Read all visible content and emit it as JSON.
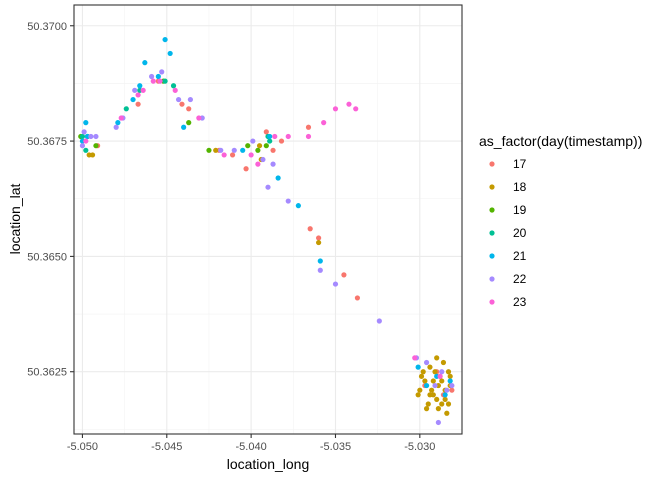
{
  "chart_data": {
    "type": "scatter",
    "title": "",
    "xlabel": "location_long",
    "ylabel": "location_lat",
    "xlim": [
      -5.0505,
      -5.0275
    ],
    "ylim": [
      50.36115,
      50.37045
    ],
    "x_ticks": [
      {
        "value": -5.05,
        "label": "-5.050"
      },
      {
        "value": -5.045,
        "label": "-5.045"
      },
      {
        "value": -5.04,
        "label": "-5.040"
      },
      {
        "value": -5.035,
        "label": "-5.035"
      },
      {
        "value": -5.03,
        "label": "-5.030"
      }
    ],
    "y_ticks": [
      {
        "value": 50.3625,
        "label": "50.3625"
      },
      {
        "value": 50.365,
        "label": "50.3650"
      },
      {
        "value": 50.3675,
        "label": "50.3675"
      },
      {
        "value": 50.37,
        "label": "50.3700"
      }
    ],
    "grid": true,
    "legend": {
      "title": "as_factor(day(timestamp))",
      "position": "right",
      "entries": [
        {
          "label": "17",
          "color": "#F8766D"
        },
        {
          "label": "18",
          "color": "#C49A00"
        },
        {
          "label": "19",
          "color": "#53B400"
        },
        {
          "label": "20",
          "color": "#00C094"
        },
        {
          "label": "21",
          "color": "#00B6EB"
        },
        {
          "label": "22",
          "color": "#A58AFF"
        },
        {
          "label": "23",
          "color": "#FB61D7"
        }
      ]
    },
    "series": [
      {
        "name": "17",
        "color": "#F8766D",
        "points": [
          [
            -5.0491,
            50.3674
          ],
          [
            -5.0467,
            50.3683
          ],
          [
            -5.0455,
            50.3688
          ],
          [
            -5.0441,
            50.3683
          ],
          [
            -5.0437,
            50.3682
          ],
          [
            -5.0419,
            50.3673
          ],
          [
            -5.0411,
            50.3672
          ],
          [
            -5.0403,
            50.3669
          ],
          [
            -5.0391,
            50.3677
          ],
          [
            -5.0382,
            50.3675
          ],
          [
            -5.0387,
            50.3673
          ],
          [
            -5.0366,
            50.3678
          ],
          [
            -5.0365,
            50.3656
          ],
          [
            -5.036,
            50.3654
          ],
          [
            -5.0345,
            50.3646
          ],
          [
            -5.0337,
            50.3641
          ],
          [
            -5.0286,
            50.362
          ],
          [
            -5.029,
            50.3625
          ],
          [
            -5.0297,
            50.3622
          ],
          [
            -5.0281,
            50.3621
          ]
        ]
      },
      {
        "name": "18",
        "color": "#C49A00",
        "points": [
          [
            -5.0496,
            50.3672
          ],
          [
            -5.0494,
            50.3672
          ],
          [
            -5.0421,
            50.3673
          ],
          [
            -5.0394,
            50.3671
          ],
          [
            -5.0395,
            50.3674
          ],
          [
            -5.036,
            50.3653
          ],
          [
            -5.0301,
            50.362
          ],
          [
            -5.0299,
            50.3624
          ],
          [
            -5.0297,
            50.3623
          ],
          [
            -5.0295,
            50.3618
          ],
          [
            -5.0294,
            50.3626
          ],
          [
            -5.0293,
            50.3621
          ],
          [
            -5.0292,
            50.362
          ],
          [
            -5.0291,
            50.3625
          ],
          [
            -5.029,
            50.3619
          ],
          [
            -5.0289,
            50.3622
          ],
          [
            -5.0288,
            50.3624
          ],
          [
            -5.0287,
            50.3618
          ],
          [
            -5.0286,
            50.3627
          ],
          [
            -5.0285,
            50.3621
          ],
          [
            -5.0284,
            50.3616
          ],
          [
            -5.0283,
            50.3625
          ],
          [
            -5.0282,
            50.3622
          ],
          [
            -5.03,
            50.3621
          ],
          [
            -5.0296,
            50.3617
          ],
          [
            -5.0292,
            50.3623
          ],
          [
            -5.0289,
            50.3617
          ],
          [
            -5.0285,
            50.3619
          ],
          [
            -5.0283,
            50.3618
          ],
          [
            -5.0282,
            50.3624
          ],
          [
            -5.0298,
            50.3625
          ],
          [
            -5.0294,
            50.362
          ],
          [
            -5.029,
            50.3628
          ],
          [
            -5.0287,
            50.3623
          ]
        ]
      },
      {
        "name": "19",
        "color": "#53B400",
        "points": [
          [
            -5.0501,
            50.3676
          ],
          [
            -5.0492,
            50.3674
          ],
          [
            -5.0452,
            50.3688
          ],
          [
            -5.0437,
            50.3679
          ],
          [
            -5.0425,
            50.3673
          ],
          [
            -5.0402,
            50.3674
          ],
          [
            -5.0396,
            50.3673
          ],
          [
            -5.0391,
            50.3674
          ]
        ]
      },
      {
        "name": "20",
        "color": "#00C094",
        "points": [
          [
            -5.05,
            50.3676
          ],
          [
            -5.0498,
            50.3673
          ],
          [
            -5.0497,
            50.3676
          ],
          [
            -5.0474,
            50.3682
          ],
          [
            -5.0466,
            50.3686
          ],
          [
            -5.0451,
            50.3688
          ],
          [
            -5.0446,
            50.3687
          ],
          [
            -5.039,
            50.3676
          ],
          [
            -5.0389,
            50.3675
          ]
        ]
      },
      {
        "name": "21",
        "color": "#00B6EB",
        "points": [
          [
            -5.05,
            50.3675
          ],
          [
            -5.0498,
            50.3679
          ],
          [
            -5.0497,
            50.3676
          ],
          [
            -5.0479,
            50.3679
          ],
          [
            -5.047,
            50.3684
          ],
          [
            -5.0466,
            50.3687
          ],
          [
            -5.0463,
            50.3692
          ],
          [
            -5.0455,
            50.3689
          ],
          [
            -5.0451,
            50.3697
          ],
          [
            -5.0448,
            50.3694
          ],
          [
            -5.044,
            50.3678
          ],
          [
            -5.0405,
            50.3673
          ],
          [
            -5.0389,
            50.3676
          ],
          [
            -5.0384,
            50.3667
          ],
          [
            -5.0372,
            50.3661
          ],
          [
            -5.0359,
            50.3649
          ],
          [
            -5.0301,
            50.3626
          ],
          [
            -5.0296,
            50.3622
          ],
          [
            -5.029,
            50.3624
          ],
          [
            -5.0285,
            50.362
          ],
          [
            -5.0282,
            50.3623
          ]
        ]
      },
      {
        "name": "22",
        "color": "#A58AFF",
        "points": [
          [
            -5.05,
            50.3674
          ],
          [
            -5.0499,
            50.3677
          ],
          [
            -5.0495,
            50.3676
          ],
          [
            -5.0492,
            50.3676
          ],
          [
            -5.048,
            50.3678
          ],
          [
            -5.0476,
            50.368
          ],
          [
            -5.0469,
            50.3686
          ],
          [
            -5.0459,
            50.3689
          ],
          [
            -5.0453,
            50.369
          ],
          [
            -5.0443,
            50.3684
          ],
          [
            -5.0436,
            50.3684
          ],
          [
            -5.0429,
            50.368
          ],
          [
            -5.0418,
            50.3673
          ],
          [
            -5.041,
            50.3673
          ],
          [
            -5.0399,
            50.3675
          ],
          [
            -5.0393,
            50.3671
          ],
          [
            -5.0387,
            50.367
          ],
          [
            -5.039,
            50.3665
          ],
          [
            -5.0378,
            50.3662
          ],
          [
            -5.0359,
            50.3647
          ],
          [
            -5.035,
            50.3644
          ],
          [
            -5.0324,
            50.3636
          ],
          [
            -5.0302,
            50.3628
          ],
          [
            -5.0296,
            50.3627
          ],
          [
            -5.0291,
            50.3622
          ],
          [
            -5.0287,
            50.3625
          ],
          [
            -5.0289,
            50.3614
          ],
          [
            -5.0284,
            50.3621
          ],
          [
            -5.0281,
            50.3622
          ]
        ]
      },
      {
        "name": "23",
        "color": "#FB61D7",
        "points": [
          [
            -5.0498,
            50.3675
          ],
          [
            -5.0477,
            50.368
          ],
          [
            -5.0467,
            50.3685
          ],
          [
            -5.0464,
            50.3686
          ],
          [
            -5.0458,
            50.3688
          ],
          [
            -5.0454,
            50.3688
          ],
          [
            -5.0445,
            50.3686
          ],
          [
            -5.0431,
            50.368
          ],
          [
            -5.0416,
            50.3672
          ],
          [
            -5.04,
            50.3672
          ],
          [
            -5.0396,
            50.367
          ],
          [
            -5.0386,
            50.3676
          ],
          [
            -5.0378,
            50.3676
          ],
          [
            -5.0366,
            50.3676
          ],
          [
            -5.0357,
            50.3679
          ],
          [
            -5.035,
            50.3682
          ],
          [
            -5.0342,
            50.3683
          ],
          [
            -5.0338,
            50.3682
          ],
          [
            -5.0303,
            50.3628
          ],
          [
            -5.0288,
            50.3624
          ]
        ]
      }
    ]
  }
}
